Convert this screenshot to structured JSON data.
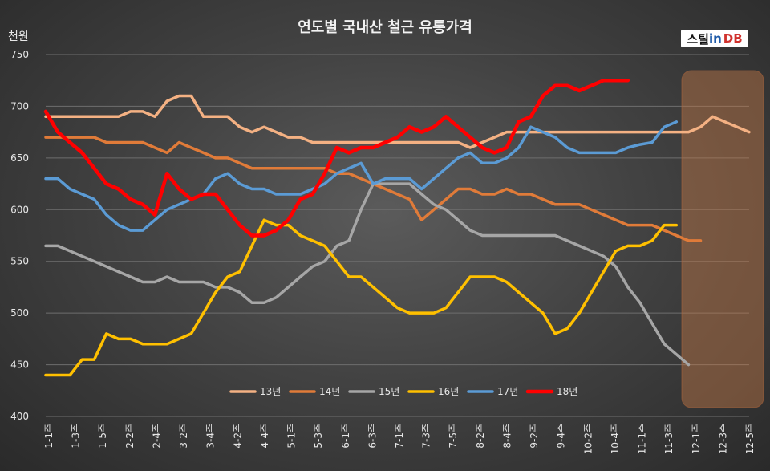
{
  "chart_data": {
    "type": "line",
    "title": "연도별 국내산 철근 유통가격",
    "ylabel": "천원",
    "ylim": [
      400,
      750
    ],
    "yticks": [
      400,
      450,
      500,
      550,
      600,
      650,
      700,
      750
    ],
    "x_tick_labels": [
      "1-1주",
      "1-3주",
      "1-5주",
      "2-2주",
      "2-4주",
      "3-2주",
      "3-4주",
      "4-2주",
      "4-4주",
      "5-1주",
      "5-3주",
      "6-1주",
      "6-3주",
      "7-1주",
      "7-3주",
      "7-5주",
      "8-2주",
      "8-4주",
      "9-2주",
      "9-4주",
      "10-2주",
      "10-4주",
      "11-1주",
      "11-3주",
      "12-1주",
      "12-3주",
      "12-5주"
    ],
    "grid": "horizontal",
    "legend_position": "bottom",
    "highlight_region": "12월",
    "series": [
      {
        "name": "13년",
        "color": "#f4b183",
        "values": [
          690,
          690,
          690,
          690,
          690,
          690,
          690,
          695,
          695,
          690,
          705,
          710,
          710,
          690,
          690,
          690,
          680,
          675,
          680,
          675,
          670,
          670,
          665,
          665,
          665,
          665,
          665,
          665,
          665,
          665,
          665,
          665,
          665,
          665,
          665,
          660,
          665,
          670,
          675,
          675,
          675,
          675,
          675,
          675,
          675,
          675,
          675,
          675,
          675,
          675,
          675,
          675,
          675,
          675,
          680,
          690,
          685,
          680,
          675
        ]
      },
      {
        "name": "14년",
        "color": "#e07b39",
        "values": [
          670,
          670,
          670,
          670,
          670,
          665,
          665,
          665,
          665,
          660,
          655,
          665,
          660,
          655,
          650,
          650,
          645,
          640,
          640,
          640,
          640,
          640,
          640,
          640,
          635,
          635,
          630,
          625,
          620,
          615,
          610,
          590,
          600,
          610,
          620,
          620,
          615,
          615,
          620,
          615,
          615,
          610,
          605,
          605,
          605,
          600,
          595,
          590,
          585,
          585,
          585,
          580,
          575,
          570,
          570
        ]
      },
      {
        "name": "15년",
        "color": "#a6a6a6",
        "values": [
          565,
          565,
          560,
          555,
          550,
          545,
          540,
          535,
          530,
          530,
          535,
          530,
          530,
          530,
          525,
          525,
          520,
          510,
          510,
          515,
          525,
          535,
          545,
          550,
          565,
          570,
          600,
          625,
          625,
          625,
          625,
          615,
          605,
          600,
          590,
          580,
          575,
          575,
          575,
          575,
          575,
          575,
          575,
          570,
          565,
          560,
          555,
          545,
          525,
          510,
          490,
          470,
          460,
          450
        ]
      },
      {
        "name": "16년",
        "color": "#ffc000",
        "values": [
          440,
          440,
          440,
          455,
          455,
          480,
          475,
          475,
          470,
          470,
          470,
          475,
          480,
          500,
          520,
          535,
          540,
          565,
          590,
          585,
          585,
          575,
          570,
          565,
          550,
          535,
          535,
          525,
          515,
          505,
          500,
          500,
          500,
          505,
          520,
          535,
          535,
          535,
          530,
          520,
          510,
          500,
          480,
          485,
          500,
          520,
          540,
          560,
          565,
          565,
          570,
          585,
          585
        ]
      },
      {
        "name": "17년",
        "color": "#5b9bd5",
        "values": [
          630,
          630,
          620,
          615,
          610,
          595,
          585,
          580,
          580,
          590,
          600,
          605,
          610,
          615,
          630,
          635,
          625,
          620,
          620,
          615,
          615,
          615,
          620,
          625,
          635,
          640,
          645,
          625,
          630,
          630,
          630,
          620,
          630,
          640,
          650,
          655,
          645,
          645,
          650,
          660,
          680,
          675,
          670,
          660,
          655,
          655,
          655,
          655,
          660,
          663,
          665,
          680,
          685
        ]
      },
      {
        "name": "18년",
        "color": "#ff0000",
        "values": [
          695,
          675,
          665,
          655,
          640,
          625,
          620,
          610,
          605,
          595,
          635,
          620,
          610,
          615,
          615,
          600,
          585,
          575,
          575,
          580,
          590,
          610,
          615,
          635,
          660,
          655,
          660,
          660,
          665,
          670,
          680,
          675,
          680,
          690,
          680,
          670,
          660,
          655,
          660,
          685,
          690,
          710,
          720,
          720,
          715,
          720,
          725,
          725,
          725
        ]
      }
    ]
  },
  "logo": {
    "a": "스틸",
    "b": "in",
    "c": "DB"
  }
}
